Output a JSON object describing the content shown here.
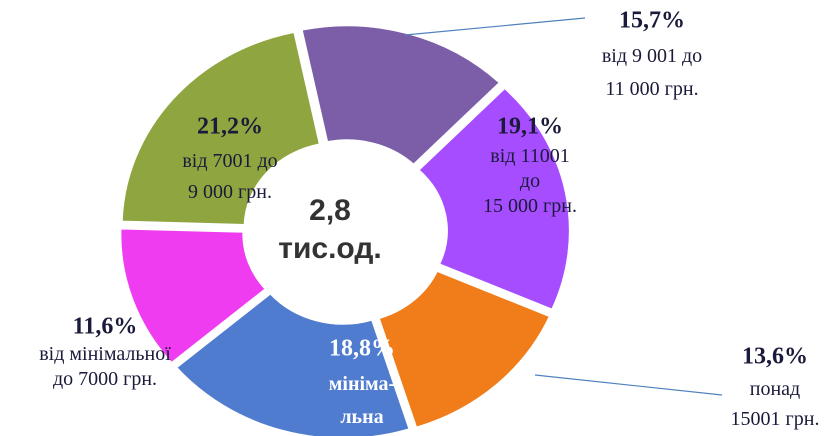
{
  "chart_data": {
    "type": "donut",
    "center_label": "2,8\nтис.од.",
    "categories": [
      "від 9 001 до\n11 000 грн.",
      "від 11001\nдо\n15 000 грн.",
      "понад\n15001 грн.",
      "міні­ма-\nльна",
      "від мінімальної\nдо 7000 грн.",
      "від 7001 до\n9 000 грн."
    ],
    "values": [
      15.7,
      19.1,
      13.6,
      18.8,
      11.6,
      21.2
    ],
    "value_labels": [
      "15,7%",
      "19,1%",
      "13,6%",
      "18,8%",
      "11,6%",
      "21,2%"
    ],
    "colors": [
      "#7b5ea7",
      "#a64dff",
      "#f07d1a",
      "#4f7ccf",
      "#f03cf0",
      "#8fa640"
    ]
  }
}
